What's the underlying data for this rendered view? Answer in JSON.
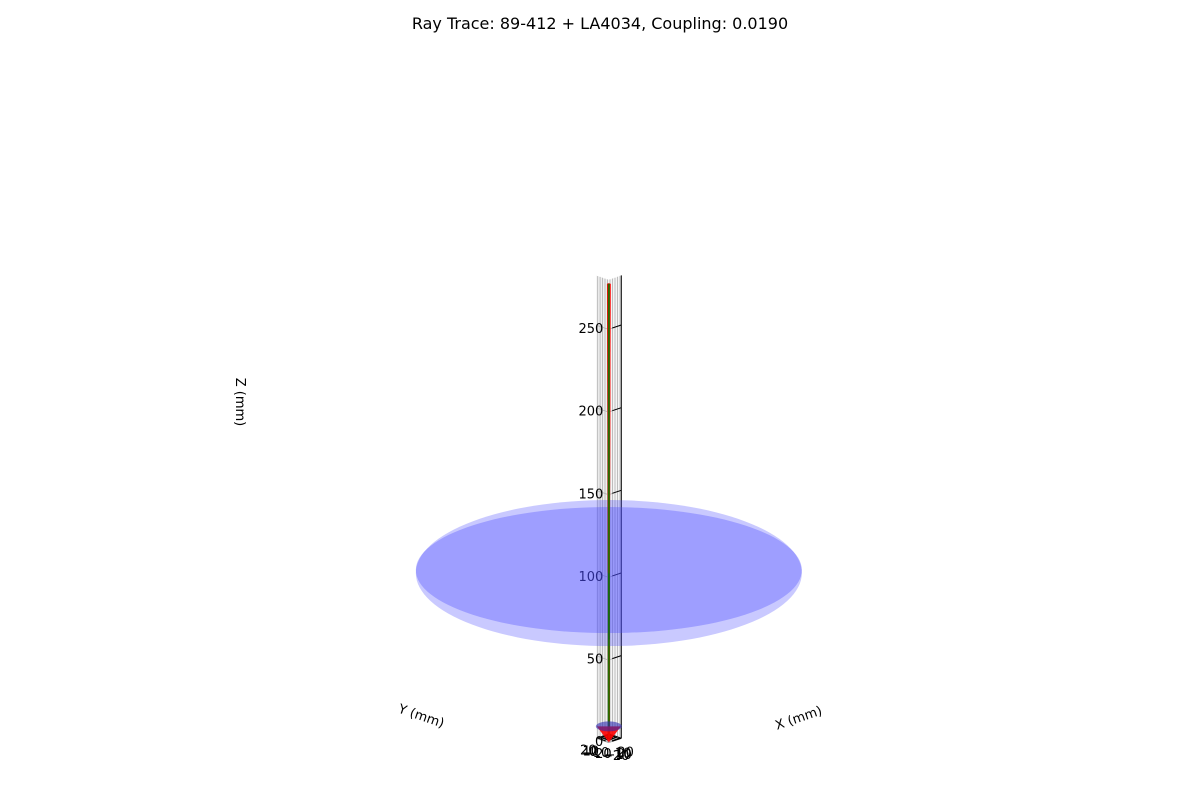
{
  "chart_data": {
    "type": "ray-trace-3d",
    "title": "Ray Trace: 89-412 + LA4034, Coupling: 0.0190",
    "xlabel": "X (mm)",
    "ylabel": "Y (mm)",
    "zlabel": "Z (mm)",
    "xlim": [
      -25.4,
      25.4
    ],
    "ylim": [
      -25.4,
      25.4
    ],
    "zlim": [
      0,
      280
    ],
    "x_ticks": [
      -20,
      -10,
      0,
      10,
      20
    ],
    "y_ticks": [
      -20,
      -10,
      0,
      10,
      20
    ],
    "z_ticks": [
      0,
      50,
      100,
      150,
      200,
      250
    ],
    "x_tick_labels": [
      "−20",
      "−10",
      "0",
      "10",
      "20"
    ],
    "y_tick_labels": [
      "−20",
      "−10",
      "0",
      "10",
      "20"
    ],
    "z_tick_labels": [
      "0",
      "50",
      "100",
      "150",
      "200",
      "250"
    ],
    "grid": true,
    "view": {
      "elev": 20,
      "azim": 45
    },
    "colors": {
      "rays": "#ff0000",
      "chief_ray": "#008000",
      "lens": "#4d4dff",
      "source": "#2b2bb3"
    },
    "lens": {
      "center_z": 100,
      "radius": 25.4,
      "thickness": 4
    },
    "source": {
      "z": 0,
      "radius": 1.0
    },
    "rays": [
      {
        "z0": 0,
        "z1": 100,
        "x0": -0.1,
        "y0": 0.0,
        "x1": -0.2,
        "y1": 0.5,
        "x2": -1.6,
        "y2": 3.0
      },
      {
        "z0": 0,
        "z1": 100,
        "x0": 0.1,
        "y0": 0.0,
        "x1": 0.3,
        "y1": -0.4,
        "x2": 2.2,
        "y2": -2.6
      },
      {
        "z0": 0,
        "z1": 100,
        "x0": 0.0,
        "y0": 0.1,
        "x1": 0.5,
        "y1": 0.2,
        "x2": 3.4,
        "y2": 1.9
      },
      {
        "z0": 0,
        "z1": 100,
        "x0": 0.0,
        "y0": -0.1,
        "x1": -0.5,
        "y1": -0.2,
        "x2": -3.1,
        "y2": -2.2
      },
      {
        "z0": 0,
        "z1": 100,
        "x0": 0.1,
        "y0": 0.1,
        "x1": 0.1,
        "y1": 0.6,
        "x2": 0.8,
        "y2": 3.8
      },
      {
        "z0": 0,
        "z1": 100,
        "x0": -0.1,
        "y0": -0.1,
        "x1": -0.2,
        "y1": -0.6,
        "x2": -0.9,
        "y2": -3.6
      },
      {
        "z0": 0,
        "z1": 100,
        "x0": 0.1,
        "y0": -0.1,
        "x1": 0.5,
        "y1": -0.3,
        "x2": 3.0,
        "y2": -0.6
      },
      {
        "z0": 0,
        "z1": 100,
        "x0": -0.1,
        "y0": 0.1,
        "x1": -0.4,
        "y1": 0.3,
        "x2": -2.9,
        "y2": 0.8
      },
      {
        "z0": 0,
        "z1": 100,
        "x0": 0.0,
        "y0": 0.0,
        "x1": 0.4,
        "y1": 0.5,
        "x2": 2.6,
        "y2": 3.2
      },
      {
        "z0": 0,
        "z1": 100,
        "x0": 0.0,
        "y0": 0.0,
        "x1": -0.4,
        "y1": -0.4,
        "x2": -2.4,
        "y2": -3.0
      },
      {
        "z0": 0,
        "z1": 100,
        "x0": 0.1,
        "y0": 0.1,
        "x1": 0.6,
        "y1": -0.1,
        "x2": 3.6,
        "y2": 0.2
      },
      {
        "z0": 0,
        "z1": 100,
        "x0": -0.1,
        "y0": -0.1,
        "x1": -0.6,
        "y1": 0.1,
        "x2": -3.8,
        "y2": -0.4
      },
      {
        "z0": 0,
        "z1": 100,
        "x0": 0.0,
        "y0": 0.1,
        "x1": -0.1,
        "y1": 0.4,
        "x2": -0.4,
        "y2": 2.4
      },
      {
        "z0": 0,
        "z1": 100,
        "x0": 0.0,
        "y0": -0.1,
        "x1": 0.2,
        "y1": -0.5,
        "x2": 1.2,
        "y2": -3.3
      }
    ],
    "chief_ray": {
      "z0": 0,
      "z1": 275,
      "x": 0.0,
      "y": 0.0
    }
  }
}
